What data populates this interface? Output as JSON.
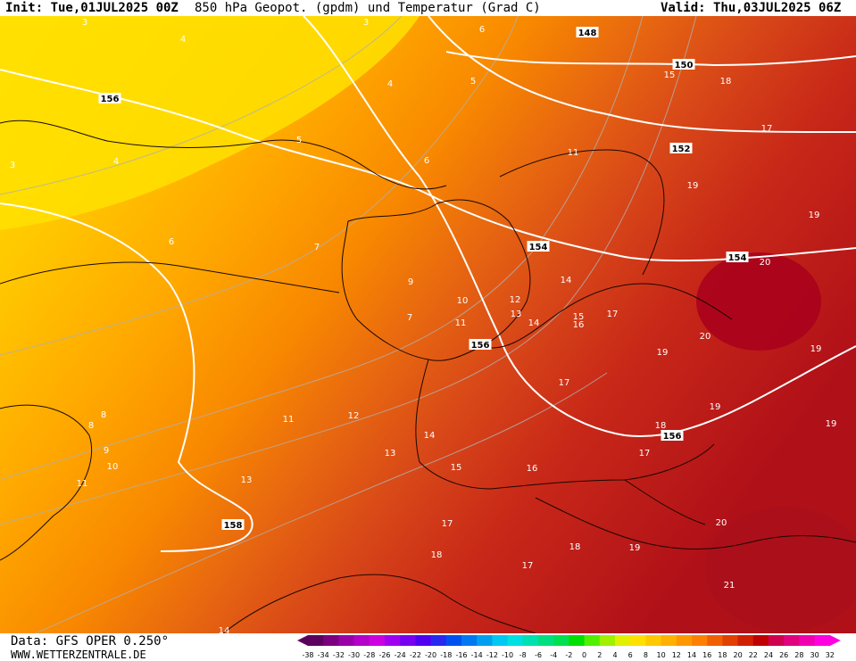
{
  "header": {
    "init": "Init: Tue,01JUL2025 00Z",
    "title": "850 hPa Geopot. (gpdm) und Temperatur (Grad C)",
    "valid": "Valid: Thu,03JUL2025 06Z"
  },
  "footer": {
    "data_source": "Data: GFS OPER 0.250°",
    "url": "WWW.WETTERZENTRALE.DE"
  },
  "colorbar": {
    "ticks": [
      "-38",
      "-34",
      "-32",
      "-30",
      "-28",
      "-26",
      "-24",
      "-22",
      "-20",
      "-18",
      "-16",
      "-14",
      "-12",
      "-10",
      "-8",
      "-6",
      "-4",
      "-2",
      "0",
      "2",
      "4",
      "6",
      "8",
      "10",
      "12",
      "14",
      "16",
      "18",
      "20",
      "22",
      "24",
      "26",
      "28",
      "30",
      "32"
    ],
    "colors": [
      "#5c0060",
      "#7a0080",
      "#9a00a8",
      "#b400c8",
      "#cc00e0",
      "#a000f0",
      "#7800f0",
      "#5000f0",
      "#2828f0",
      "#0050f0",
      "#0078f0",
      "#00a0f0",
      "#00c8f0",
      "#00e0e0",
      "#00e0b0",
      "#00e080",
      "#00e050",
      "#00e000",
      "#50f000",
      "#a0f000",
      "#e0f000",
      "#ffe000",
      "#ffc800",
      "#ffb000",
      "#ff9800",
      "#ff8000",
      "#f06000",
      "#e04000",
      "#d02000",
      "#c00000",
      "#d00050",
      "#e00080",
      "#f000b0",
      "#ff00e0"
    ]
  },
  "map_labels": {
    "geopotential": [
      {
        "text": "148"
      },
      {
        "text": "150"
      },
      {
        "text": "152"
      },
      {
        "text": "154"
      },
      {
        "text": "154"
      },
      {
        "text": "156"
      },
      {
        "text": "156"
      },
      {
        "text": "156"
      },
      {
        "text": "158"
      }
    ],
    "temperature": [
      {
        "text": "3"
      },
      {
        "text": "3"
      },
      {
        "text": "3"
      },
      {
        "text": "4"
      },
      {
        "text": "4"
      },
      {
        "text": "4"
      },
      {
        "text": "5"
      },
      {
        "text": "5"
      },
      {
        "text": "6"
      },
      {
        "text": "6"
      },
      {
        "text": "6"
      },
      {
        "text": "7"
      },
      {
        "text": "7"
      },
      {
        "text": "8"
      },
      {
        "text": "8"
      },
      {
        "text": "9"
      },
      {
        "text": "9"
      },
      {
        "text": "10"
      },
      {
        "text": "10"
      },
      {
        "text": "11"
      },
      {
        "text": "11"
      },
      {
        "text": "11"
      },
      {
        "text": "11"
      },
      {
        "text": "12"
      },
      {
        "text": "12"
      },
      {
        "text": "13"
      },
      {
        "text": "13"
      },
      {
        "text": "13"
      },
      {
        "text": "14"
      },
      {
        "text": "14"
      },
      {
        "text": "14"
      },
      {
        "text": "14"
      },
      {
        "text": "15"
      },
      {
        "text": "15"
      },
      {
        "text": "15"
      },
      {
        "text": "16"
      },
      {
        "text": "16"
      },
      {
        "text": "17"
      },
      {
        "text": "17"
      },
      {
        "text": "17"
      },
      {
        "text": "17"
      },
      {
        "text": "17"
      },
      {
        "text": "17"
      },
      {
        "text": "18"
      },
      {
        "text": "18"
      },
      {
        "text": "18"
      },
      {
        "text": "18"
      },
      {
        "text": "19"
      },
      {
        "text": "19"
      },
      {
        "text": "19"
      },
      {
        "text": "19"
      },
      {
        "text": "19"
      },
      {
        "text": "19"
      },
      {
        "text": "19"
      },
      {
        "text": "20"
      },
      {
        "text": "20"
      },
      {
        "text": "20"
      },
      {
        "text": "21"
      }
    ]
  }
}
